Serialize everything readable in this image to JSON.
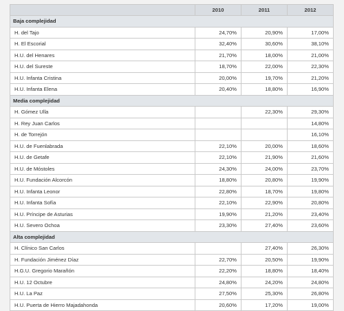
{
  "table": {
    "columns": [
      "2010",
      "2011",
      "2012"
    ],
    "sections": [
      {
        "title": "Baja complejidad",
        "rows": [
          {
            "name": "H. del Tajo",
            "values": [
              "24,70%",
              "20,90%",
              "17,00%"
            ]
          },
          {
            "name": "H. El Escorial",
            "values": [
              "32,40%",
              "30,60%",
              "38,10%"
            ]
          },
          {
            "name": "H.U. del Henares",
            "values": [
              "21,70%",
              "18,00%",
              "21,00%"
            ]
          },
          {
            "name": "H.U. del Sureste",
            "values": [
              "18,70%",
              "22,00%",
              "22,30%"
            ]
          },
          {
            "name": "H.U. Infanta Cristina",
            "values": [
              "20,00%",
              "19,70%",
              "21,20%"
            ]
          },
          {
            "name": "H.U. Infanta Elena",
            "values": [
              "20,40%",
              "18,80%",
              "16,90%"
            ]
          }
        ]
      },
      {
        "title": "Media complejidad",
        "rows": [
          {
            "name": "H. Gómez Ulla",
            "values": [
              "",
              "22,30%",
              "29,30%"
            ]
          },
          {
            "name": "H. Rey Juan Carlos",
            "values": [
              "",
              "",
              "14,80%"
            ]
          },
          {
            "name": "H. de Torrejón",
            "values": [
              "",
              "",
              "16,10%"
            ]
          },
          {
            "name": "H.U. de Fuenlabrada",
            "values": [
              "22,10%",
              "20,00%",
              "18,60%"
            ]
          },
          {
            "name": "H.U. de Getafe",
            "values": [
              "22,10%",
              "21,90%",
              "21,60%"
            ]
          },
          {
            "name": "H.U. de Móstoles",
            "values": [
              "24,30%",
              "24,00%",
              "23,70%"
            ]
          },
          {
            "name": "H.U. Fundación Alcorcón",
            "values": [
              "18,80%",
              "20,80%",
              "19,90%"
            ]
          },
          {
            "name": "H.U. Infanta Leonor",
            "values": [
              "22,80%",
              "18,70%",
              "19,80%"
            ]
          },
          {
            "name": "H.U. Infanta Sofía",
            "values": [
              "22,10%",
              "22,90%",
              "20,80%"
            ]
          },
          {
            "name": "H.U. Príncipe de Asturias",
            "values": [
              "19,90%",
              "21,20%",
              "23,40%"
            ]
          },
          {
            "name": "H.U. Severo Ochoa",
            "values": [
              "23,30%",
              "27,40%",
              "23,60%"
            ]
          }
        ]
      },
      {
        "title": "Alta complejidad",
        "rows": [
          {
            "name": "H. Clínico San Carlos",
            "values": [
              "",
              "27,40%",
              "26,30%"
            ]
          },
          {
            "name": "H. Fundación Jiménez Díaz",
            "values": [
              "22,70%",
              "20,50%",
              "19,90%"
            ]
          },
          {
            "name": "H.G.U. Gregorio Marañón",
            "values": [
              "22,20%",
              "18,80%",
              "18,40%"
            ]
          },
          {
            "name": "H.U. 12 Octubre",
            "values": [
              "24,80%",
              "24,20%",
              "24,80%"
            ]
          },
          {
            "name": "H.U. La Paz",
            "values": [
              "27,50%",
              "25,30%",
              "26,80%"
            ]
          },
          {
            "name": "H.U. Puerta de Hierro Majadahonda",
            "values": [
              "20,60%",
              "17,20%",
              "19,00%"
            ]
          }
        ]
      }
    ]
  }
}
